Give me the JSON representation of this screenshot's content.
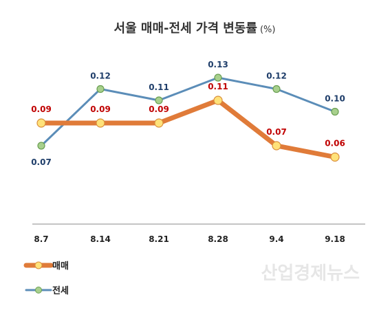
{
  "chart_data": {
    "type": "line",
    "title": "서울 매매-전세 가격 변동률",
    "title_unit": "(%)",
    "categories": [
      "8.7",
      "8.14",
      "8.21",
      "8.28",
      "9.4",
      "9.18"
    ],
    "series": [
      {
        "name": "매매",
        "values": [
          0.09,
          0.09,
          0.09,
          0.11,
          0.07,
          0.06
        ],
        "labels": [
          "0.09",
          "0.09",
          "0.09",
          "0.11",
          "0.07",
          "0.06"
        ],
        "color": "#e07b39",
        "marker_color": "#ffe27a",
        "label_color": "#c00000"
      },
      {
        "name": "전세",
        "values": [
          0.07,
          0.12,
          0.11,
          0.13,
          0.12,
          0.1
        ],
        "labels": [
          "0.07",
          "0.12",
          "0.11",
          "0.13",
          "0.12",
          "0.10"
        ],
        "color": "#5b8db8",
        "marker_color": "#a8d08d",
        "label_color": "#1f3e6a"
      }
    ],
    "grid": false,
    "legend_position": "bottom-left"
  },
  "watermark": "산업경제뉴스"
}
